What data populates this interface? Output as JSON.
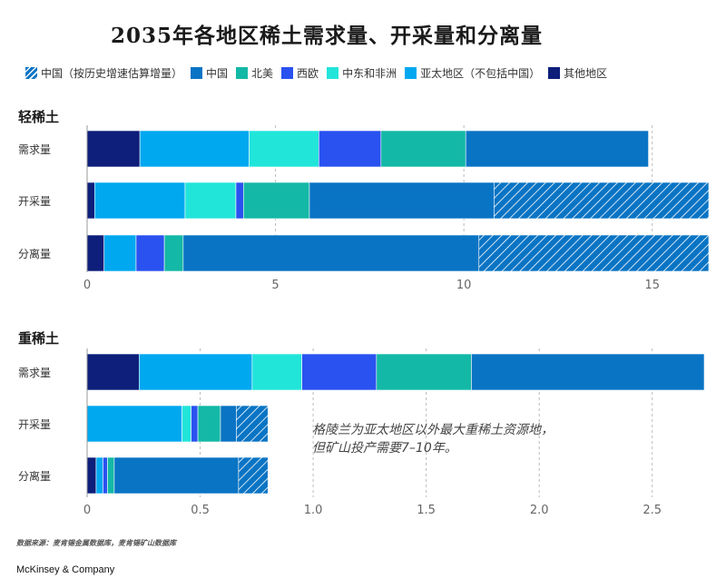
{
  "title": "2035年各地区稀土需求量、开采量和分离量",
  "legend": {
    "items": [
      {
        "key": "china_est",
        "label": "中国（按历史增速估算增量）",
        "color": "#0a74c4",
        "hatch": true,
        "icon": "hatched-swatch-icon"
      },
      {
        "key": "china",
        "label": "中国",
        "color": "#0a74c4",
        "hatch": false,
        "icon": "swatch-icon"
      },
      {
        "key": "na",
        "label": "北美",
        "color": "#14b8a6",
        "hatch": false,
        "icon": "swatch-icon"
      },
      {
        "key": "eu",
        "label": "西欧",
        "color": "#2a52f0",
        "hatch": false,
        "icon": "swatch-icon"
      },
      {
        "key": "mea",
        "label": "中东和非洲",
        "color": "#22e5da",
        "hatch": false,
        "icon": "swatch-icon"
      },
      {
        "key": "apac",
        "label": "亚太地区（不包括中国）",
        "color": "#00a8f0",
        "hatch": false,
        "icon": "swatch-icon"
      },
      {
        "key": "other",
        "label": "其他地区",
        "color": "#0d1f7a",
        "hatch": false,
        "icon": "swatch-icon"
      }
    ]
  },
  "chart_data": [
    {
      "type": "bar",
      "orientation": "horizontal",
      "stacked": true,
      "title": "轻稀土",
      "categories": [
        "需求量",
        "开采量",
        "分离量"
      ],
      "xlim": [
        0,
        16.5
      ],
      "xticks": [
        0,
        5,
        10,
        15
      ],
      "grid": true,
      "series": [
        {
          "key": "other",
          "name": "其他地区",
          "values": [
            1.4,
            0.2,
            0.45
          ]
        },
        {
          "key": "apac",
          "name": "亚太地区（不包括中国）",
          "values": [
            2.9,
            2.4,
            0.85
          ]
        },
        {
          "key": "mea",
          "name": "中东和非洲",
          "values": [
            1.85,
            1.35,
            0.0
          ]
        },
        {
          "key": "eu",
          "name": "西欧",
          "values": [
            1.65,
            0.2,
            0.75
          ]
        },
        {
          "key": "na",
          "name": "北美",
          "values": [
            2.25,
            1.75,
            0.5
          ]
        },
        {
          "key": "china",
          "name": "中国",
          "values": [
            4.85,
            4.9,
            7.85
          ]
        },
        {
          "key": "china_est",
          "name": "中国（按历史增速估算增量）",
          "values": [
            0,
            5.8,
            6.1
          ]
        }
      ]
    },
    {
      "type": "bar",
      "orientation": "horizontal",
      "stacked": true,
      "title": "重稀土",
      "categories": [
        "需求量",
        "开采量",
        "分离量"
      ],
      "xlim": [
        0,
        2.75
      ],
      "xticks": [
        0,
        0.5,
        1.0,
        1.5,
        2.0,
        2.5
      ],
      "grid": true,
      "annotation": [
        "格陵兰为亚太地区以外最大重稀土资源地，",
        "但矿山投产需要7–10年。"
      ],
      "series": [
        {
          "key": "other",
          "name": "其他地区",
          "values": [
            0.23,
            0.0,
            0.04
          ]
        },
        {
          "key": "apac",
          "name": "亚太地区（不包括中国）",
          "values": [
            0.5,
            0.42,
            0.03
          ]
        },
        {
          "key": "mea",
          "name": "中东和非洲",
          "values": [
            0.22,
            0.04,
            0.0
          ]
        },
        {
          "key": "eu",
          "name": "西欧",
          "values": [
            0.33,
            0.03,
            0.02
          ]
        },
        {
          "key": "na",
          "name": "北美",
          "values": [
            0.42,
            0.1,
            0.03
          ]
        },
        {
          "key": "china",
          "name": "中国",
          "values": [
            1.03,
            0.07,
            0.55
          ]
        },
        {
          "key": "china_est",
          "name": "中国（按历史增速估算增量）",
          "values": [
            0,
            0.14,
            0.13
          ]
        }
      ]
    }
  ],
  "source": "数据来源：麦肯锡金属数据库，麦肯锡矿山数据库",
  "brand": "McKinsey & Company"
}
